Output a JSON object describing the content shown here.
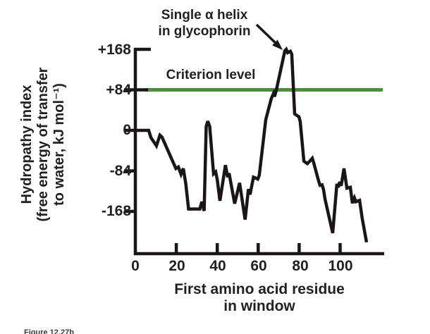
{
  "colors": {
    "ink": "#1a1617",
    "criterion_green": "#4c8c3c",
    "background": "#ffffff"
  },
  "chart_data": {
    "type": "line",
    "title": "",
    "xlabel_lines": [
      "First amino acid residue",
      "in window"
    ],
    "ylabel_lines": [
      "Hydropathy index",
      "(free energy of transfer",
      "to water, kJ mol⁻¹)"
    ],
    "xticks": [
      0,
      20,
      40,
      60,
      80,
      100
    ],
    "xtick_labels": [
      "0",
      "20",
      "40",
      "60",
      "80",
      "100"
    ],
    "yticks": [
      168,
      84,
      0,
      -84,
      -168
    ],
    "ytick_labels": [
      "+168",
      "+84",
      "0",
      "-84",
      "-168"
    ],
    "xlim": [
      0,
      121
    ],
    "ylim": [
      -250,
      190
    ],
    "grid": false,
    "criterion": {
      "label": "Criterion level",
      "value": 84
    },
    "annotation": {
      "lines": [
        "Single α helix",
        "in glycophorin"
      ],
      "points_to": {
        "x": 73,
        "y": 168
      }
    },
    "series": [
      {
        "name": "hydropathy index",
        "points": [
          [
            0,
            0
          ],
          [
            6.5,
            0
          ],
          [
            7.6,
            -15
          ],
          [
            10.3,
            -32
          ],
          [
            12,
            -10
          ],
          [
            13,
            -14
          ],
          [
            19.8,
            -79
          ],
          [
            21,
            -76
          ],
          [
            22.3,
            -91
          ],
          [
            23.4,
            -79
          ],
          [
            24.6,
            -110
          ],
          [
            26,
            -163
          ],
          [
            31.5,
            -163
          ],
          [
            32.5,
            -148
          ],
          [
            33.6,
            -167
          ],
          [
            34.6,
            8
          ],
          [
            35.4,
            19
          ],
          [
            36.3,
            8
          ],
          [
            38.2,
            -90
          ],
          [
            39.2,
            -86
          ],
          [
            40,
            -102
          ],
          [
            41.3,
            -146
          ],
          [
            44,
            -72
          ],
          [
            45.1,
            -97
          ],
          [
            45.8,
            -89
          ],
          [
            48.5,
            -152
          ],
          [
            50.9,
            -109
          ],
          [
            53.6,
            -185
          ],
          [
            55.2,
            -122
          ],
          [
            56,
            -133
          ],
          [
            57.7,
            -97
          ],
          [
            59.8,
            -101
          ],
          [
            60.5,
            -93
          ],
          [
            63.7,
            22
          ],
          [
            66.4,
            66
          ],
          [
            67.5,
            77
          ],
          [
            68,
            70
          ],
          [
            68.8,
            83
          ],
          [
            73,
            165
          ],
          [
            73.7,
            168
          ],
          [
            74.4,
            161
          ],
          [
            75.7,
            164
          ],
          [
            76.4,
            158
          ],
          [
            77.8,
            34
          ],
          [
            79.9,
            28
          ],
          [
            80.5,
            18
          ],
          [
            82.3,
            -64
          ],
          [
            84,
            -69
          ],
          [
            85.4,
            -63
          ],
          [
            86.4,
            -58
          ],
          [
            87.1,
            -67
          ],
          [
            89.5,
            -105
          ],
          [
            90.2,
            -114
          ],
          [
            91.2,
            -113
          ],
          [
            91.9,
            -123
          ],
          [
            92.6,
            -142
          ],
          [
            96.4,
            -213
          ],
          [
            98.4,
            -111
          ],
          [
            99.1,
            -118
          ],
          [
            99.8,
            -107
          ],
          [
            100.5,
            -115
          ],
          [
            101.9,
            -79
          ],
          [
            103.3,
            -120
          ],
          [
            105,
            -118
          ],
          [
            106,
            -151
          ],
          [
            107,
            -140
          ],
          [
            107.7,
            -148
          ],
          [
            109.5,
            -145
          ],
          [
            110.8,
            -183
          ],
          [
            112.9,
            -232
          ]
        ]
      }
    ],
    "figure_caption": "Figure 12.27b"
  }
}
